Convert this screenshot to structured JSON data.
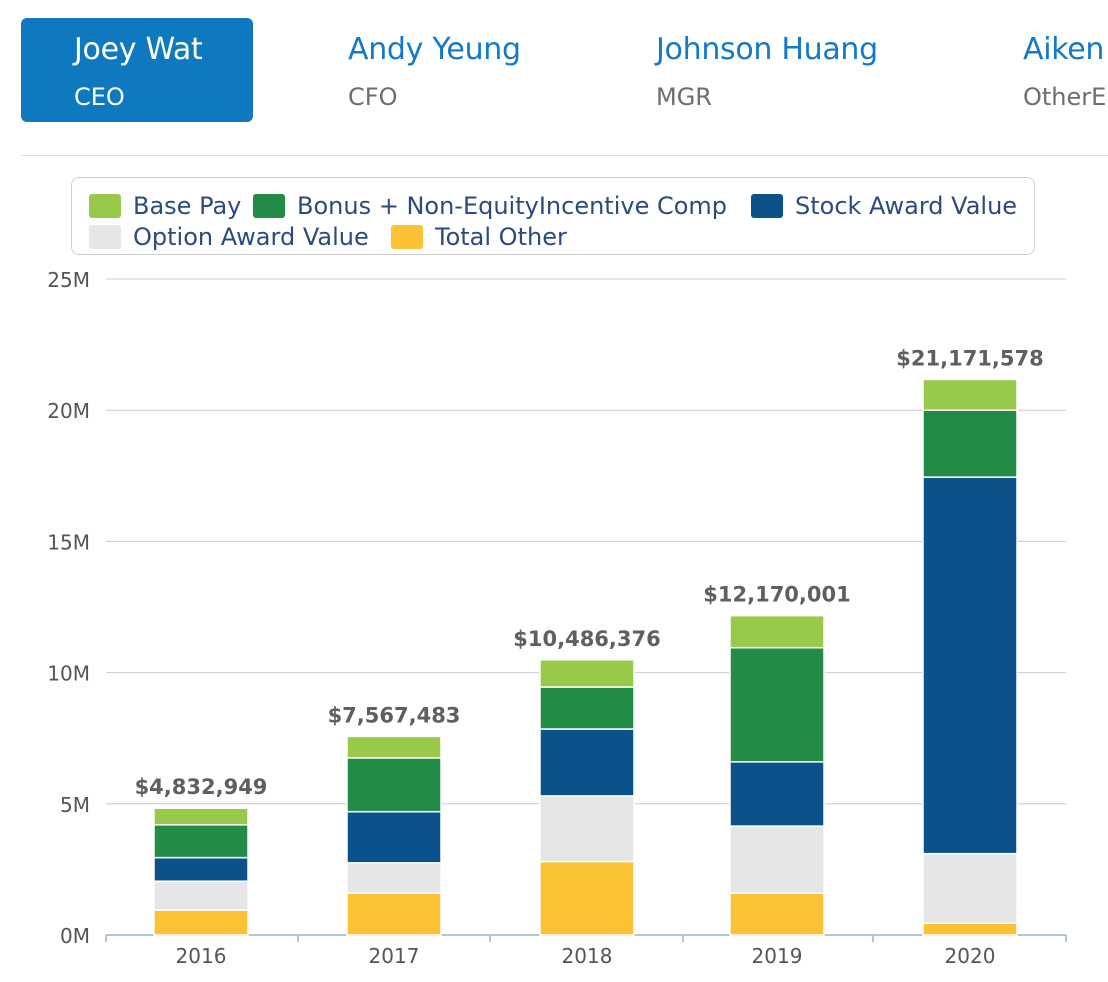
{
  "tabs": [
    {
      "name": "Joey Wat",
      "role": "CEO",
      "active": true
    },
    {
      "name": "Andy Yeung",
      "role": "CFO",
      "active": false
    },
    {
      "name": "Johnson Huang",
      "role": "MGR",
      "active": false
    },
    {
      "name": "Aiken",
      "role": "OtherE",
      "active": false
    }
  ],
  "colors": {
    "tab_active_bg": "#0f79c0",
    "tab_link": "#1479c9"
  },
  "chart_data": {
    "type": "bar",
    "stacked": true,
    "categories": [
      "2016",
      "2017",
      "2018",
      "2019",
      "2020"
    ],
    "totals_labels": [
      "$4,832,949",
      "$7,567,483",
      "$10,486,376",
      "$12,170,001",
      "$21,171,578"
    ],
    "series": [
      {
        "name": "Total Other",
        "color": "#fcc233",
        "values": [
          950000,
          1600000,
          2800000,
          1600000,
          450000
        ]
      },
      {
        "name": "Option Award Value",
        "color": "#e6e6e8",
        "values": [
          1100000,
          1150000,
          2500000,
          2550000,
          2650000
        ]
      },
      {
        "name": "Stock Award Value",
        "color": "#0a5289",
        "values": [
          900000,
          1950000,
          2550000,
          2450000,
          14350000
        ]
      },
      {
        "name": "Bonus + Non-EquityIncentive Comp",
        "color": "#228b45",
        "values": [
          1250000,
          2050000,
          1600000,
          4350000,
          2550000
        ]
      },
      {
        "name": "Base Pay",
        "color": "#98c948",
        "values": [
          632949,
          817483,
          1036376,
          1220001,
          1171578
        ]
      }
    ],
    "legend_order": [
      "Base Pay",
      "Bonus + Non-EquityIncentive Comp",
      "Stock Award Value",
      "Option Award Value",
      "Total Other"
    ],
    "y_ticks": [
      "0M",
      "5M",
      "10M",
      "15M",
      "20M",
      "25M"
    ],
    "ylim": [
      0,
      25000000
    ],
    "grid": true,
    "legend_position": "top"
  }
}
